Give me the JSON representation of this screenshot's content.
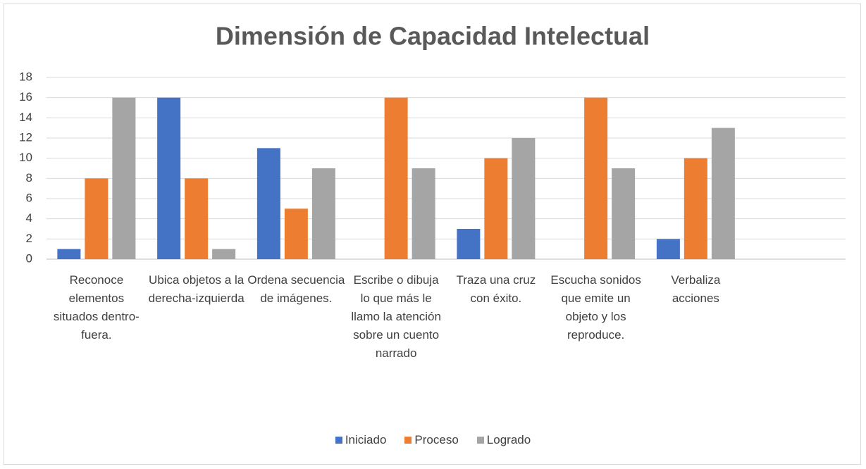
{
  "chart_data": {
    "type": "bar",
    "title": "Dimensión de Capacidad Intelectual",
    "categories": [
      "Reconoce elementos situados dentro- fuera.",
      "Ubica objetos a la derecha-izquierda",
      "Ordena secuencia de imágenes.",
      "Escribe o dibuja lo que más le llamo la atención sobre un cuento narrado",
      "Traza una cruz con éxito.",
      "Escucha sonidos que emite un objeto y los reproduce.",
      "Verbaliza acciones",
      null
    ],
    "series": [
      {
        "name": "Iniciado",
        "color": "#4472c4",
        "values": [
          1,
          16,
          11,
          0,
          3,
          0,
          2,
          null
        ]
      },
      {
        "name": "Proceso",
        "color": "#ed7d31",
        "values": [
          8,
          8,
          5,
          16,
          10,
          16,
          10,
          null
        ]
      },
      {
        "name": "Logrado",
        "color": "#a5a5a5",
        "values": [
          16,
          1,
          9,
          9,
          12,
          9,
          13,
          null
        ]
      }
    ],
    "ylim": [
      0,
      18
    ],
    "yticks": [
      0,
      2,
      4,
      6,
      8,
      10,
      12,
      14,
      16,
      18
    ],
    "grid": true,
    "legend": "bottom"
  }
}
